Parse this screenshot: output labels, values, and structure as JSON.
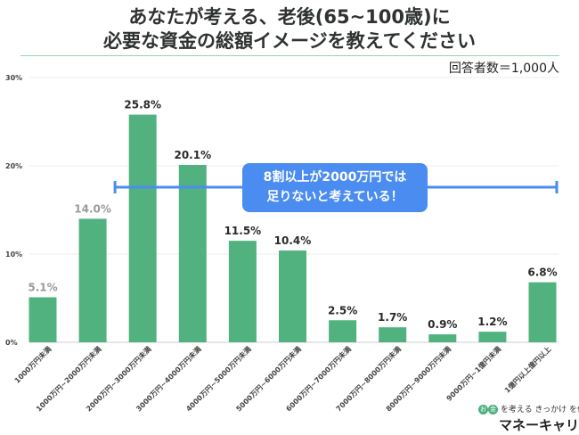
{
  "chart_data": {
    "type": "bar",
    "title": "あなたが考える、老後(65~100歳)に 必要な資金の総額イメージを教えてください",
    "title_lines": [
      "あなたが考える、老後(65~100歳)に",
      "必要な資金の総額イメージを教えてください"
    ],
    "respondents": "回答者数＝1,000人",
    "categories": [
      "1000万円未満",
      "1000万円~2000万円未満",
      "2000万円~3000万円未満",
      "3000万円~4000万円未満",
      "4000万円~5000万円未満",
      "5000万円~6000万円未満",
      "6000万円~7000万円未満",
      "7000万円~8000万円未満",
      "8000万円~9000万円未満",
      "9000万円~1億円未満",
      "1億円以上億円以上"
    ],
    "values": [
      5.1,
      14.0,
      25.8,
      20.1,
      11.5,
      10.4,
      2.5,
      1.7,
      0.9,
      1.2,
      6.8
    ],
    "value_labels": [
      "5.1%",
      "14.0%",
      "25.8%",
      "20.1%",
      "11.5%",
      "10.4%",
      "2.5%",
      "1.7%",
      "0.9%",
      "1.2%",
      "6.8%"
    ],
    "ylim": [
      0,
      30
    ],
    "yticks": [
      0,
      10,
      20,
      30
    ],
    "ytick_labels": [
      "0%",
      "10%",
      "20%",
      "30%"
    ],
    "grid": true,
    "bar_color": "#52b27f",
    "annotation": {
      "lines": [
        "8割以上が2000万円では",
        "足りないと考えている！"
      ],
      "color": "#4a8cf0",
      "from_category": 1,
      "to_category": 10
    }
  },
  "logo": {
    "line1": "を考える きっかけ を作る",
    "line2": "マネーキャリア",
    "badge1": "お",
    "badge2": "金"
  }
}
